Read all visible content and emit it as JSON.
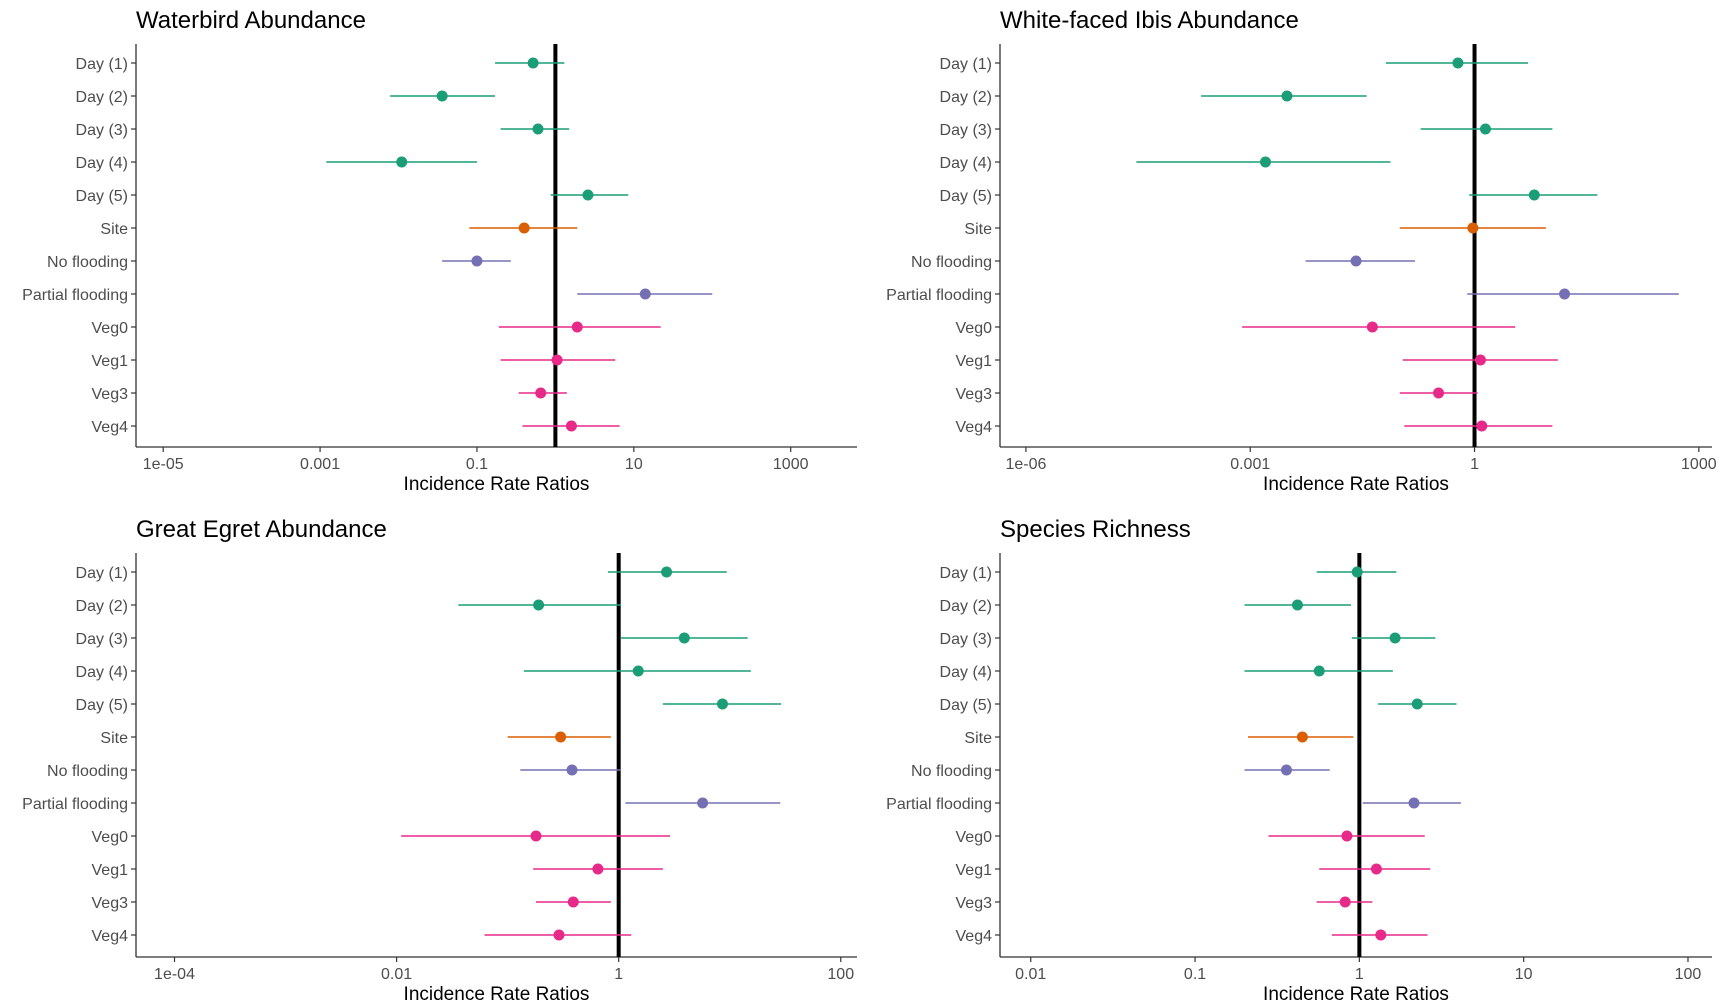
{
  "colors": {
    "day": "#1b9e77",
    "site": "#d95f02",
    "flooding": "#7570b3",
    "vegetation": "#e7298a",
    "reference_line": "#000000",
    "axis": "#333333"
  },
  "chart_data": [
    {
      "type": "scatter",
      "title": "Waterbird Abundance",
      "xlabel": "Incidence Rate Ratios",
      "x_scale": "log10",
      "xlim": [
        4.5e-06,
        7000
      ],
      "x_ticks": [
        1e-05,
        0.001,
        0.1,
        10,
        1000
      ],
      "x_tick_labels": [
        "1e-05",
        "0.001",
        "0.1",
        "10",
        "1000"
      ],
      "reference_line": 1,
      "categories": [
        "Day (1)",
        "Day (2)",
        "Day (3)",
        "Day (4)",
        "Day (5)",
        "Site",
        "No flooding",
        "Partial flooding",
        "Veg0",
        "Veg1",
        "Veg3",
        "Veg4"
      ],
      "groups": [
        "day",
        "day",
        "day",
        "day",
        "day",
        "site",
        "flooding",
        "flooding",
        "vegetation",
        "vegetation",
        "vegetation",
        "vegetation"
      ],
      "estimates": [
        0.52,
        0.036,
        0.6,
        0.011,
        2.6,
        0.4,
        0.1,
        14,
        1.9,
        1.05,
        0.65,
        1.6
      ],
      "lower": [
        0.17,
        0.0078,
        0.2,
        0.0012,
        0.87,
        0.08,
        0.036,
        1.9,
        0.19,
        0.2,
        0.34,
        0.38
      ],
      "upper": [
        1.3,
        0.17,
        1.5,
        0.1,
        8.5,
        1.9,
        0.27,
        100,
        22,
        5.8,
        1.4,
        6.6
      ]
    },
    {
      "type": "scatter",
      "title": "White-faced Ibis Abundance",
      "xlabel": "Incidence Rate Ratios",
      "x_scale": "log10",
      "xlim": [
        4.5e-07,
        1500
      ],
      "x_ticks": [
        1e-06,
        0.001,
        1,
        1000
      ],
      "x_tick_labels": [
        "1e-06",
        "0.001",
        "1",
        "1000"
      ],
      "reference_line": 1,
      "categories": [
        "Day (1)",
        "Day (2)",
        "Day (3)",
        "Day (4)",
        "Day (5)",
        "Site",
        "No flooding",
        "Partial flooding",
        "Veg0",
        "Veg1",
        "Veg3",
        "Veg4"
      ],
      "groups": [
        "day",
        "day",
        "day",
        "day",
        "day",
        "site",
        "flooding",
        "flooding",
        "vegetation",
        "vegetation",
        "vegetation",
        "vegetation"
      ],
      "estimates": [
        0.6,
        0.0031,
        1.4,
        0.0016,
        6.3,
        0.95,
        0.026,
        16,
        0.043,
        1.2,
        0.33,
        1.25
      ],
      "lower": [
        0.065,
        0.00022,
        0.19,
        3e-05,
        0.85,
        0.1,
        0.0055,
        0.8,
        0.00078,
        0.11,
        0.1,
        0.115
      ],
      "upper": [
        5.2,
        0.036,
        11,
        0.075,
        44,
        9,
        0.16,
        540,
        3.5,
        13,
        1.1,
        11
      ]
    },
    {
      "type": "scatter",
      "title": "Great Egret Abundance",
      "xlabel": "Incidence Rate Ratios",
      "x_scale": "log10",
      "xlim": [
        4.5e-05,
        140
      ],
      "x_ticks": [
        0.0001,
        0.01,
        1,
        100
      ],
      "x_tick_labels": [
        "1e-04",
        "0.01",
        "1",
        "100"
      ],
      "reference_line": 1,
      "categories": [
        "Day (1)",
        "Day (2)",
        "Day (3)",
        "Day (4)",
        "Day (5)",
        "Site",
        "No flooding",
        "Partial flooding",
        "Veg0",
        "Veg1",
        "Veg3",
        "Veg4"
      ],
      "groups": [
        "day",
        "day",
        "day",
        "day",
        "day",
        "site",
        "flooding",
        "flooding",
        "vegetation",
        "vegetation",
        "vegetation",
        "vegetation"
      ],
      "estimates": [
        2.7,
        0.19,
        3.9,
        1.5,
        8.6,
        0.3,
        0.38,
        5.7,
        0.18,
        0.65,
        0.39,
        0.29
      ],
      "lower": [
        0.8,
        0.036,
        1.05,
        0.14,
        2.5,
        0.1,
        0.13,
        1.15,
        0.011,
        0.17,
        0.18,
        0.062
      ],
      "upper": [
        9.4,
        1.05,
        14.5,
        15.5,
        29,
        0.85,
        1.05,
        28.5,
        2.9,
        2.5,
        0.85,
        1.3
      ]
    },
    {
      "type": "scatter",
      "title": "Species Richness",
      "xlabel": "Incidence Rate Ratios",
      "x_scale": "log10",
      "xlim": [
        0.0065,
        140
      ],
      "x_ticks": [
        0.01,
        0.1,
        1,
        10,
        100
      ],
      "x_tick_labels": [
        "0.01",
        "0.1",
        "1",
        "10",
        "100"
      ],
      "reference_line": 1,
      "categories": [
        "Day (1)",
        "Day (2)",
        "Day (3)",
        "Day (4)",
        "Day (5)",
        "Site",
        "No flooding",
        "Partial flooding",
        "Veg0",
        "Veg1",
        "Veg3",
        "Veg4"
      ],
      "groups": [
        "day",
        "day",
        "day",
        "day",
        "day",
        "site",
        "flooding",
        "flooding",
        "vegetation",
        "vegetation",
        "vegetation",
        "vegetation"
      ],
      "estimates": [
        0.97,
        0.42,
        1.65,
        0.57,
        2.25,
        0.45,
        0.36,
        2.15,
        0.84,
        1.27,
        0.82,
        1.35
      ],
      "lower": [
        0.55,
        0.2,
        0.9,
        0.2,
        1.3,
        0.21,
        0.2,
        1.05,
        0.28,
        0.57,
        0.55,
        0.68
      ],
      "upper": [
        1.68,
        0.89,
        2.9,
        1.6,
        3.9,
        0.92,
        0.66,
        4.15,
        2.5,
        2.7,
        1.2,
        2.6
      ]
    }
  ]
}
